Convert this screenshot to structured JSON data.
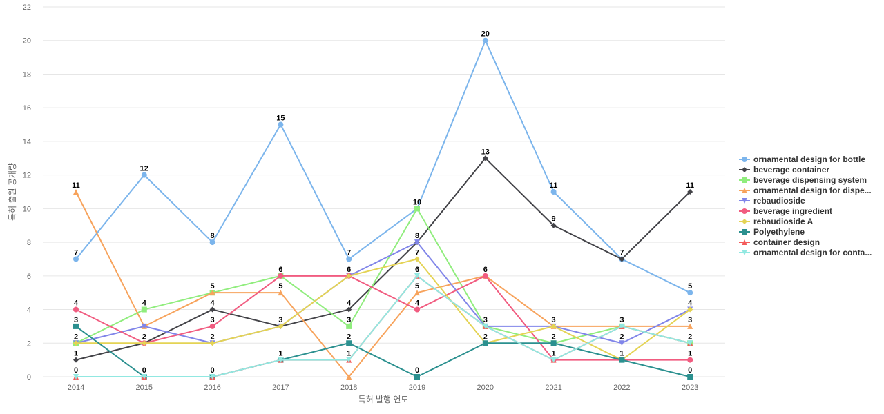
{
  "chart_data": {
    "type": "line",
    "title": "",
    "xlabel": "특허 발행 연도",
    "ylabel": "특허 출원 공개량",
    "ylim": [
      0,
      22
    ],
    "yticks": [
      0,
      2,
      4,
      6,
      8,
      10,
      12,
      14,
      16,
      18,
      20,
      22
    ],
    "grid": true,
    "legend_position": "right",
    "categories": [
      "2014",
      "2015",
      "2016",
      "2017",
      "2018",
      "2019",
      "2020",
      "2021",
      "2022",
      "2023"
    ],
    "series": [
      {
        "name": "ornamental design for bottle",
        "color": "#7cb5ec",
        "marker": "circle",
        "values": [
          7,
          12,
          8,
          15,
          7,
          10,
          20,
          11,
          7,
          5
        ],
        "labels": [
          7,
          12,
          8,
          15,
          7,
          null,
          20,
          11,
          null,
          5
        ]
      },
      {
        "name": "beverage container",
        "color": "#434348",
        "marker": "diamond",
        "values": [
          1,
          2,
          4,
          3,
          4,
          8,
          13,
          9,
          7,
          11
        ],
        "labels": [
          1,
          null,
          4,
          null,
          4,
          null,
          13,
          9,
          7,
          11
        ]
      },
      {
        "name": "beverage dispensing system",
        "color": "#90ed7d",
        "marker": "square",
        "values": [
          2,
          4,
          5,
          6,
          3,
          10,
          3,
          2,
          3,
          2
        ],
        "labels": [
          null,
          4,
          5,
          null,
          3,
          10,
          null,
          null,
          null,
          null
        ]
      },
      {
        "name": "ornamental design for dispe...",
        "color": "#f7a35c",
        "marker": "triangle",
        "values": [
          11,
          3,
          5,
          5,
          0,
          5,
          6,
          3,
          3,
          3
        ],
        "labels": [
          11,
          null,
          null,
          5,
          null,
          5,
          null,
          null,
          null,
          3
        ]
      },
      {
        "name": "rebaudioside",
        "color": "#8085e9",
        "marker": "triangle-down",
        "values": [
          2,
          3,
          2,
          3,
          6,
          8,
          3,
          3,
          2,
          4
        ],
        "labels": [
          null,
          null,
          null,
          null,
          null,
          8,
          3,
          null,
          2,
          null
        ]
      },
      {
        "name": "beverage ingredient",
        "color": "#f15c80",
        "marker": "circle",
        "values": [
          4,
          2,
          3,
          6,
          6,
          4,
          6,
          1,
          1,
          1
        ],
        "labels": [
          4,
          2,
          3,
          6,
          6,
          4,
          6,
          null,
          null,
          1
        ]
      },
      {
        "name": "rebaudioside A",
        "color": "#e4d354",
        "marker": "diamond",
        "values": [
          2,
          2,
          2,
          3,
          6,
          7,
          2,
          3,
          1,
          4
        ],
        "labels": [
          2,
          null,
          2,
          3,
          null,
          7,
          2,
          3,
          1,
          4
        ]
      },
      {
        "name": "Polyethylene",
        "color": "#2b908f",
        "marker": "square",
        "values": [
          3,
          0,
          0,
          1,
          2,
          0,
          2,
          2,
          1,
          0
        ],
        "labels": [
          3,
          0,
          null,
          null,
          2,
          0,
          null,
          2,
          null,
          0
        ]
      },
      {
        "name": "container design",
        "color": "#f45b5b",
        "marker": "triangle",
        "values": [
          0,
          0,
          0,
          1,
          1,
          6,
          3,
          1,
          3,
          2
        ],
        "labels": [
          0,
          null,
          0,
          1,
          1,
          6,
          null,
          1,
          3,
          2
        ]
      },
      {
        "name": "ornamental design for conta...",
        "color": "#91e8e1",
        "marker": "triangle-down",
        "values": [
          0,
          0,
          0,
          1,
          1,
          6,
          3,
          1,
          3,
          2
        ],
        "labels": [
          null,
          null,
          null,
          null,
          null,
          null,
          null,
          null,
          null,
          null
        ]
      }
    ]
  }
}
